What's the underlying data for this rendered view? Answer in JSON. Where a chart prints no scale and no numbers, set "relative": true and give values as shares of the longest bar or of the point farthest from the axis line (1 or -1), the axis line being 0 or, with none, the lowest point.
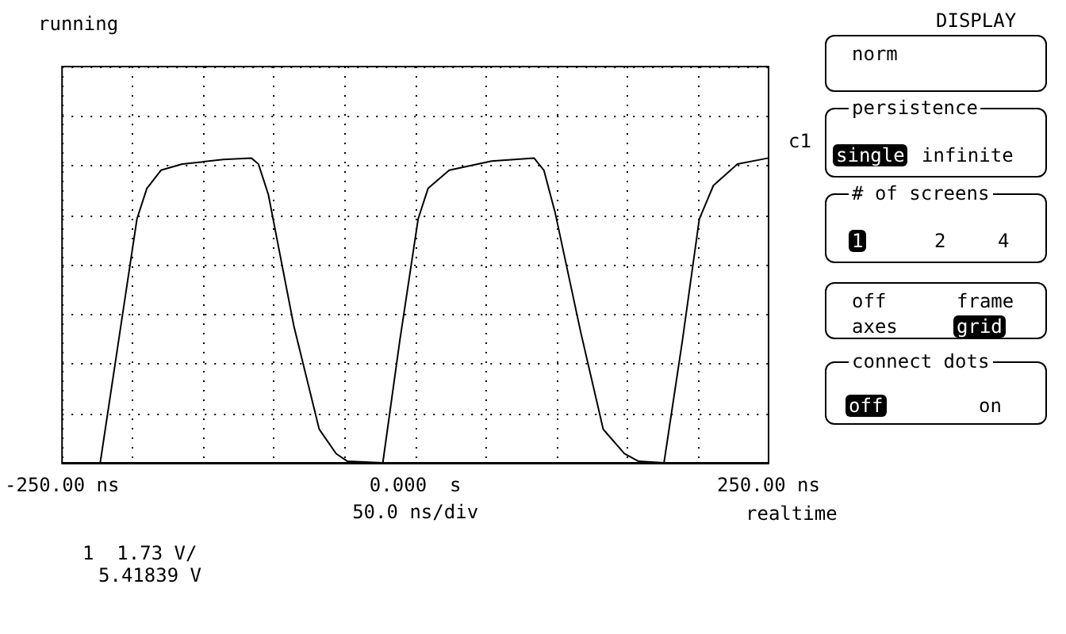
{
  "chart_data": {
    "type": "line",
    "relative": true,
    "xlabel": "50.0 ns/div",
    "x": [
      -223,
      -210,
      -197,
      -190,
      -180,
      -165,
      -136,
      -116,
      -111,
      -104,
      -86,
      -68,
      -56,
      -48,
      -23,
      -11,
      2,
      9,
      24,
      54,
      84,
      91,
      99,
      117,
      133,
      148,
      158,
      176,
      189,
      201,
      211,
      228,
      250
    ],
    "series": [
      {
        "color": "#000000",
        "values": [
          0,
          0.4,
          0.8,
          0.9,
          0.96,
          0.98,
          0.995,
          1,
          0.98,
          0.88,
          0.45,
          0.11,
          0.03,
          0.005,
          0,
          0.4,
          0.8,
          0.9,
          0.96,
          0.99,
          1,
          0.96,
          0.82,
          0.43,
          0.11,
          0.03,
          0.005,
          0,
          0.4,
          0.8,
          0.91,
          0.98,
          1
        ]
      }
    ],
    "xlim": [
      -250,
      250
    ],
    "xticks": [
      {
        "value": -250,
        "label": "-250.00 ns"
      },
      {
        "value": -200,
        "label": null
      },
      {
        "value": -150,
        "label": null
      },
      {
        "value": -100,
        "label": null
      },
      {
        "value": -50,
        "label": null
      },
      {
        "value": 0,
        "label": "0.000  s"
      },
      {
        "value": 50,
        "label": null
      },
      {
        "value": 100,
        "label": null
      },
      {
        "value": 150,
        "label": null
      },
      {
        "value": 200,
        "label": null
      },
      {
        "value": 250,
        "label": "250.00 ns"
      }
    ],
    "grid": true,
    "marker": "none",
    "line_style": "solid",
    "annotations": [
      "running",
      "c1",
      "realtime",
      "1  1.73 V/",
      "5.41839 V",
      "DISPLAY",
      "norm",
      "persistence",
      "single",
      "infinite",
      "# of screens",
      "1",
      "2",
      "4",
      "off",
      "frame",
      "axes",
      "grid",
      "connect dots",
      "off",
      "on"
    ]
  }
}
